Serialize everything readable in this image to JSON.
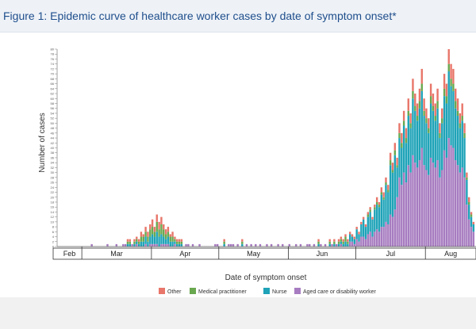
{
  "figure_title": "Figure 1: Epidemic curve of healthcare worker cases by date of symptom onset*",
  "chart_data": {
    "type": "bar",
    "stacked": true,
    "title": "Epidemic curve of healthcare worker cases by date of symptom onset",
    "xlabel": "Date of symptom onset",
    "ylabel": "Number of cases",
    "ylim": [
      0,
      80
    ],
    "y_ticks": [
      0,
      2,
      4,
      6,
      8,
      10,
      12,
      14,
      16,
      18,
      20,
      22,
      24,
      26,
      28,
      30,
      32,
      34,
      36,
      38,
      40,
      42,
      44,
      46,
      48,
      50,
      52,
      54,
      56,
      58,
      60,
      62,
      64,
      66,
      68,
      70,
      72,
      74,
      76,
      78,
      80
    ],
    "months": [
      "Feb",
      "Mar",
      "Apr",
      "May",
      "Jun",
      "Jul",
      "Aug"
    ],
    "month_starts_day": [
      0,
      11,
      42,
      72,
      103,
      133,
      164
    ],
    "start_day_label": "2020-02-19",
    "num_days": 183,
    "series": [
      {
        "name": "Aged care or disability worker",
        "color": "#a77cc0"
      },
      {
        "name": "Nurse",
        "color": "#1fa3b8"
      },
      {
        "name": "Medical practitioner",
        "color": "#6aa84f"
      },
      {
        "name": "Other",
        "color": "#e8766a"
      }
    ],
    "legend_order": [
      "Other",
      "Medical practitioner",
      "Nurse",
      "Aged care or disability worker"
    ],
    "daily_totals": [
      [
        15,
        1
      ],
      [
        22,
        1
      ],
      [
        26,
        1
      ],
      [
        29,
        1
      ],
      [
        30,
        1
      ],
      [
        31,
        2
      ],
      [
        32,
        2
      ],
      [
        33,
        1
      ],
      [
        34,
        3
      ],
      [
        35,
        4
      ],
      [
        36,
        3
      ],
      [
        37,
        6
      ],
      [
        38,
        5
      ],
      [
        39,
        8
      ],
      [
        40,
        6
      ],
      [
        41,
        9
      ],
      [
        42,
        11
      ],
      [
        43,
        8
      ],
      [
        44,
        13
      ],
      [
        45,
        10
      ],
      [
        46,
        12
      ],
      [
        47,
        9
      ],
      [
        48,
        7
      ],
      [
        49,
        8
      ],
      [
        50,
        5
      ],
      [
        51,
        6
      ],
      [
        52,
        4
      ],
      [
        53,
        3
      ],
      [
        54,
        2
      ],
      [
        55,
        2
      ],
      [
        57,
        1
      ],
      [
        58,
        1
      ],
      [
        60,
        1
      ],
      [
        63,
        1
      ],
      [
        70,
        1
      ],
      [
        71,
        1
      ],
      [
        74,
        2
      ],
      [
        76,
        1
      ],
      [
        77,
        1
      ],
      [
        78,
        1
      ],
      [
        80,
        1
      ],
      [
        82,
        2
      ],
      [
        84,
        1
      ],
      [
        86,
        1
      ],
      [
        88,
        1
      ],
      [
        90,
        1
      ],
      [
        93,
        1
      ],
      [
        95,
        1
      ],
      [
        98,
        1
      ],
      [
        100,
        1
      ],
      [
        103,
        1
      ],
      [
        106,
        1
      ],
      [
        108,
        1
      ],
      [
        111,
        1
      ],
      [
        112,
        1
      ],
      [
        114,
        1
      ],
      [
        116,
        2
      ],
      [
        117,
        1
      ],
      [
        119,
        1
      ],
      [
        121,
        2
      ],
      [
        122,
        1
      ],
      [
        123,
        2
      ],
      [
        124,
        1
      ],
      [
        125,
        2
      ],
      [
        126,
        4
      ],
      [
        127,
        3
      ],
      [
        128,
        5
      ],
      [
        129,
        3
      ],
      [
        130,
        6
      ],
      [
        131,
        5
      ],
      [
        132,
        4
      ],
      [
        133,
        8
      ],
      [
        134,
        6
      ],
      [
        135,
        10
      ],
      [
        136,
        12
      ],
      [
        137,
        9
      ],
      [
        138,
        14
      ],
      [
        139,
        16
      ],
      [
        140,
        12
      ],
      [
        141,
        17
      ],
      [
        142,
        20
      ],
      [
        143,
        18
      ],
      [
        144,
        24
      ],
      [
        145,
        22
      ],
      [
        146,
        28
      ],
      [
        147,
        25
      ],
      [
        148,
        38
      ],
      [
        149,
        34
      ],
      [
        150,
        42
      ],
      [
        151,
        36
      ],
      [
        152,
        50
      ],
      [
        153,
        46
      ],
      [
        154,
        55
      ],
      [
        155,
        48
      ],
      [
        156,
        60
      ],
      [
        157,
        54
      ],
      [
        158,
        68
      ],
      [
        159,
        62
      ],
      [
        160,
        58
      ],
      [
        161,
        64
      ],
      [
        162,
        72
      ],
      [
        163,
        60
      ],
      [
        164,
        56
      ],
      [
        165,
        52
      ],
      [
        166,
        66
      ],
      [
        167,
        62
      ],
      [
        168,
        58
      ],
      [
        169,
        64
      ],
      [
        170,
        50
      ],
      [
        171,
        56
      ],
      [
        172,
        70
      ],
      [
        173,
        66
      ],
      [
        174,
        80
      ],
      [
        175,
        74
      ],
      [
        176,
        72
      ],
      [
        177,
        64
      ],
      [
        178,
        60
      ],
      [
        179,
        54
      ],
      [
        180,
        58
      ],
      [
        181,
        50
      ],
      [
        182,
        30
      ],
      [
        183,
        20
      ],
      [
        184,
        14
      ],
      [
        185,
        10
      ]
    ],
    "composition_note": "Approximate share per day is split into aged care, nurse, medical practitioner and other categories."
  }
}
